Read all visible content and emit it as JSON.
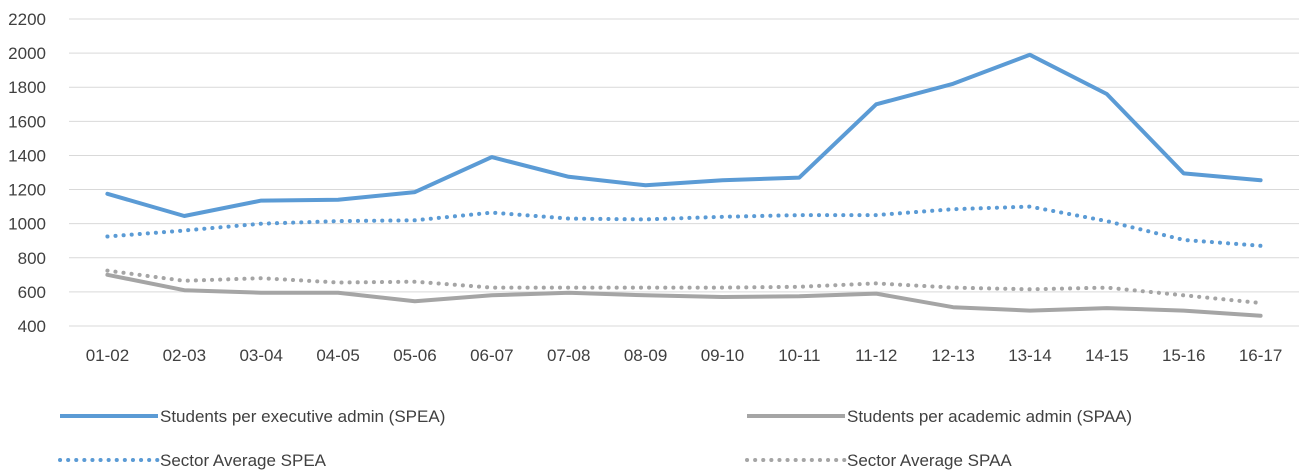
{
  "chart_data": {
    "type": "line",
    "title": "",
    "xlabel": "",
    "ylabel": "",
    "ylim": [
      400,
      2200
    ],
    "ytick_step": 200,
    "grid": "horizontal",
    "legend_position": "bottom",
    "categories": [
      "01-02",
      "02-03",
      "03-04",
      "04-05",
      "05-06",
      "06-07",
      "07-08",
      "08-09",
      "09-10",
      "10-11",
      "11-12",
      "12-13",
      "13-14",
      "14-15",
      "15-16",
      "16-17"
    ],
    "series": [
      {
        "name": "Students per executive admin (SPEA)",
        "color": "#5b9bd5",
        "style": "solid",
        "values": [
          1175,
          1045,
          1135,
          1140,
          1185,
          1390,
          1275,
          1225,
          1255,
          1270,
          1700,
          1820,
          1990,
          1760,
          1295,
          1255
        ]
      },
      {
        "name": "Students per academic admin (SPAA)",
        "color": "#a5a5a5",
        "style": "solid",
        "values": [
          700,
          610,
          595,
          595,
          545,
          580,
          595,
          580,
          570,
          575,
          590,
          510,
          490,
          505,
          490,
          460
        ]
      },
      {
        "name": "Sector Average SPEA",
        "color": "#5b9bd5",
        "style": "dotted",
        "values": [
          925,
          960,
          1000,
          1015,
          1020,
          1065,
          1030,
          1025,
          1040,
          1050,
          1050,
          1085,
          1100,
          1015,
          905,
          870
        ]
      },
      {
        "name": "Sector Average SPAA",
        "color": "#a5a5a5",
        "style": "dotted",
        "values": [
          725,
          665,
          680,
          655,
          660,
          625,
          625,
          625,
          625,
          630,
          650,
          625,
          615,
          625,
          580,
          535
        ]
      }
    ]
  }
}
